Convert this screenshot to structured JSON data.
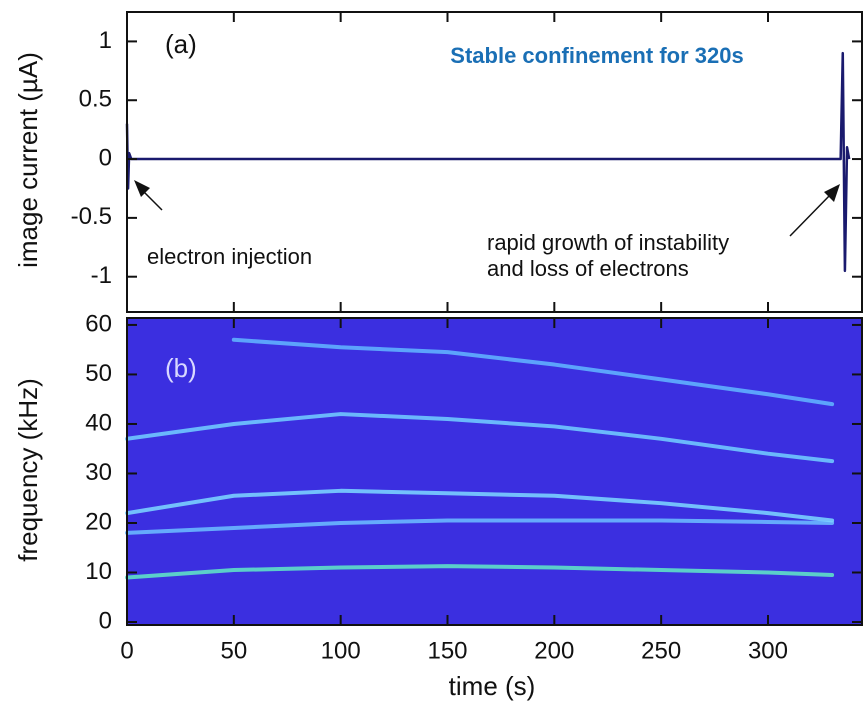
{
  "chart_data": [
    {
      "type": "line",
      "panel_label": "(a)",
      "ylabel": "image current (µA)",
      "annotations": {
        "headline": "Stable confinement for 320s",
        "left": "electron injection",
        "right": [
          "rapid growth of instability",
          "and loss of electrons"
        ]
      },
      "x": [
        0,
        0.5,
        1,
        2,
        3,
        50,
        100,
        150,
        200,
        250,
        300,
        334,
        335,
        336,
        337,
        338
      ],
      "series": [
        {
          "color": "#1a1a6e",
          "values": [
            0.3,
            -0.25,
            0.05,
            0,
            0,
            0,
            0,
            0,
            0,
            0,
            0,
            0,
            0.9,
            -0.95,
            0.1,
            0
          ]
        }
      ],
      "xlim": [
        0,
        344
      ],
      "ylim": [
        -1.3,
        1.25
      ],
      "yticks": [
        1,
        0.5,
        0,
        -0.5,
        -1
      ]
    },
    {
      "type": "spectrogram",
      "panel_label": "(b)",
      "ylabel": "frequency (kHz)",
      "xlabel": "time (s)",
      "background_color": "#3b2fe0",
      "x": [
        0,
        50,
        100,
        150,
        200,
        250,
        300,
        330
      ],
      "series": [
        {
          "color": "#5fe0c8",
          "values": [
            9,
            10.5,
            11,
            11.3,
            11,
            10.5,
            10,
            9.5
          ]
        },
        {
          "color": "#6ab8ff",
          "values": [
            18,
            19,
            20,
            20.5,
            20.5,
            20.5,
            20.2,
            20
          ]
        },
        {
          "color": "#7ad0ff",
          "values": [
            22,
            25.5,
            26.5,
            26,
            25.5,
            24,
            22,
            20.5
          ]
        },
        {
          "color": "#70c8ff",
          "values": [
            37,
            40,
            42,
            41,
            39.5,
            37,
            34,
            32.5
          ]
        },
        {
          "color": "#60b0ff",
          "values": [
            null,
            57,
            55.5,
            54.5,
            52,
            49,
            46,
            44
          ]
        }
      ],
      "xlim": [
        0,
        344
      ],
      "ylim": [
        -0.6,
        61.4
      ],
      "xticks": [
        0,
        50,
        100,
        150,
        200,
        250,
        300
      ],
      "yticks": [
        0,
        10,
        20,
        30,
        40,
        50,
        60
      ]
    }
  ]
}
